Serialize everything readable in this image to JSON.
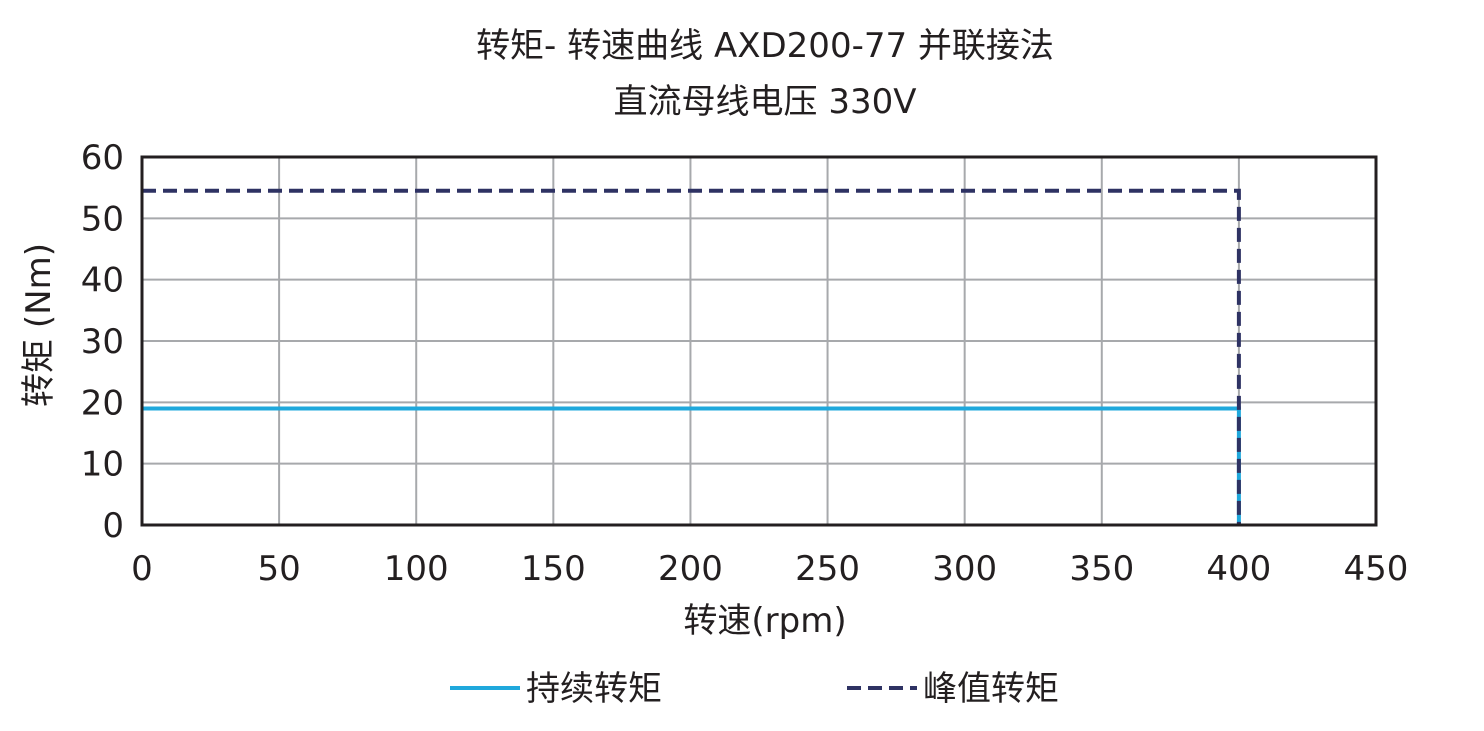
{
  "chart_data": {
    "type": "line",
    "title": "转矩- 转速曲线 AXD200-77 并联接法",
    "subtitle": "直流母线电压 330V",
    "xlabel": "转速(rpm)",
    "ylabel": "转矩 (Nm)",
    "xlim": [
      0,
      450
    ],
    "ylim": [
      0,
      60
    ],
    "xticks": [
      0,
      50,
      100,
      150,
      200,
      250,
      300,
      350,
      400,
      450
    ],
    "yticks": [
      0,
      10,
      20,
      30,
      40,
      50,
      60
    ],
    "grid": true,
    "legend_position": "bottom",
    "series": [
      {
        "name": "持续转矩",
        "style": "solid",
        "color": "#1fa8dc",
        "points": [
          [
            0,
            19
          ],
          [
            400,
            19
          ],
          [
            400,
            0
          ]
        ]
      },
      {
        "name": "峰值转矩",
        "style": "dashed",
        "color": "#2e3263",
        "points": [
          [
            0,
            54.5
          ],
          [
            400,
            54.5
          ],
          [
            400,
            0
          ]
        ]
      }
    ]
  }
}
